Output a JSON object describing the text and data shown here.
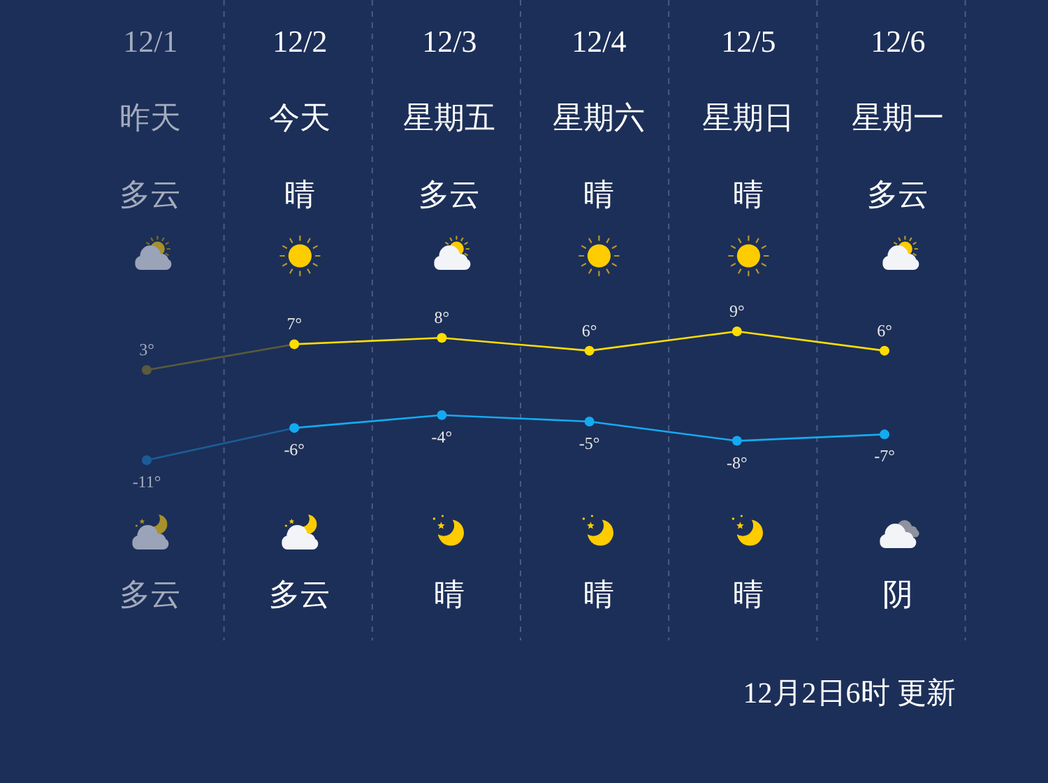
{
  "chart_data": {
    "type": "line",
    "categories": [
      "12/1",
      "12/2",
      "12/3",
      "12/4",
      "12/5",
      "12/6"
    ],
    "series": [
      {
        "colors": [
          "#5a5a3c",
          "#ffdd00",
          "#ffdd00",
          "#ffdd00",
          "#ffdd00",
          "#ffdd00"
        ],
        "values": [
          3,
          7,
          8,
          6,
          9,
          6
        ],
        "value_labels": [
          "3°",
          "7°",
          "8°",
          "6°",
          "9°",
          "6°"
        ]
      },
      {
        "colors": [
          "#1a5c96",
          "#14aaf0",
          "#14aaf0",
          "#14aaf0",
          "#14aaf0",
          "#14aaf0"
        ],
        "values": [
          -11,
          -6,
          -4,
          -5,
          -8,
          -7
        ],
        "value_labels": [
          "-11°",
          "-6°",
          "-4°",
          "-5°",
          "-8°",
          "-7°"
        ]
      }
    ],
    "marker": "circle",
    "line_style": "solid",
    "annotations": [
      "昨天",
      "今天",
      "星期五",
      "星期六",
      "星期日",
      "星期一",
      "多云",
      "晴",
      "多云",
      "晴",
      "晴",
      "多云",
      "多云",
      "多云",
      "晴",
      "晴",
      "晴",
      "阴",
      "12月2日6时 更新"
    ]
  }
}
